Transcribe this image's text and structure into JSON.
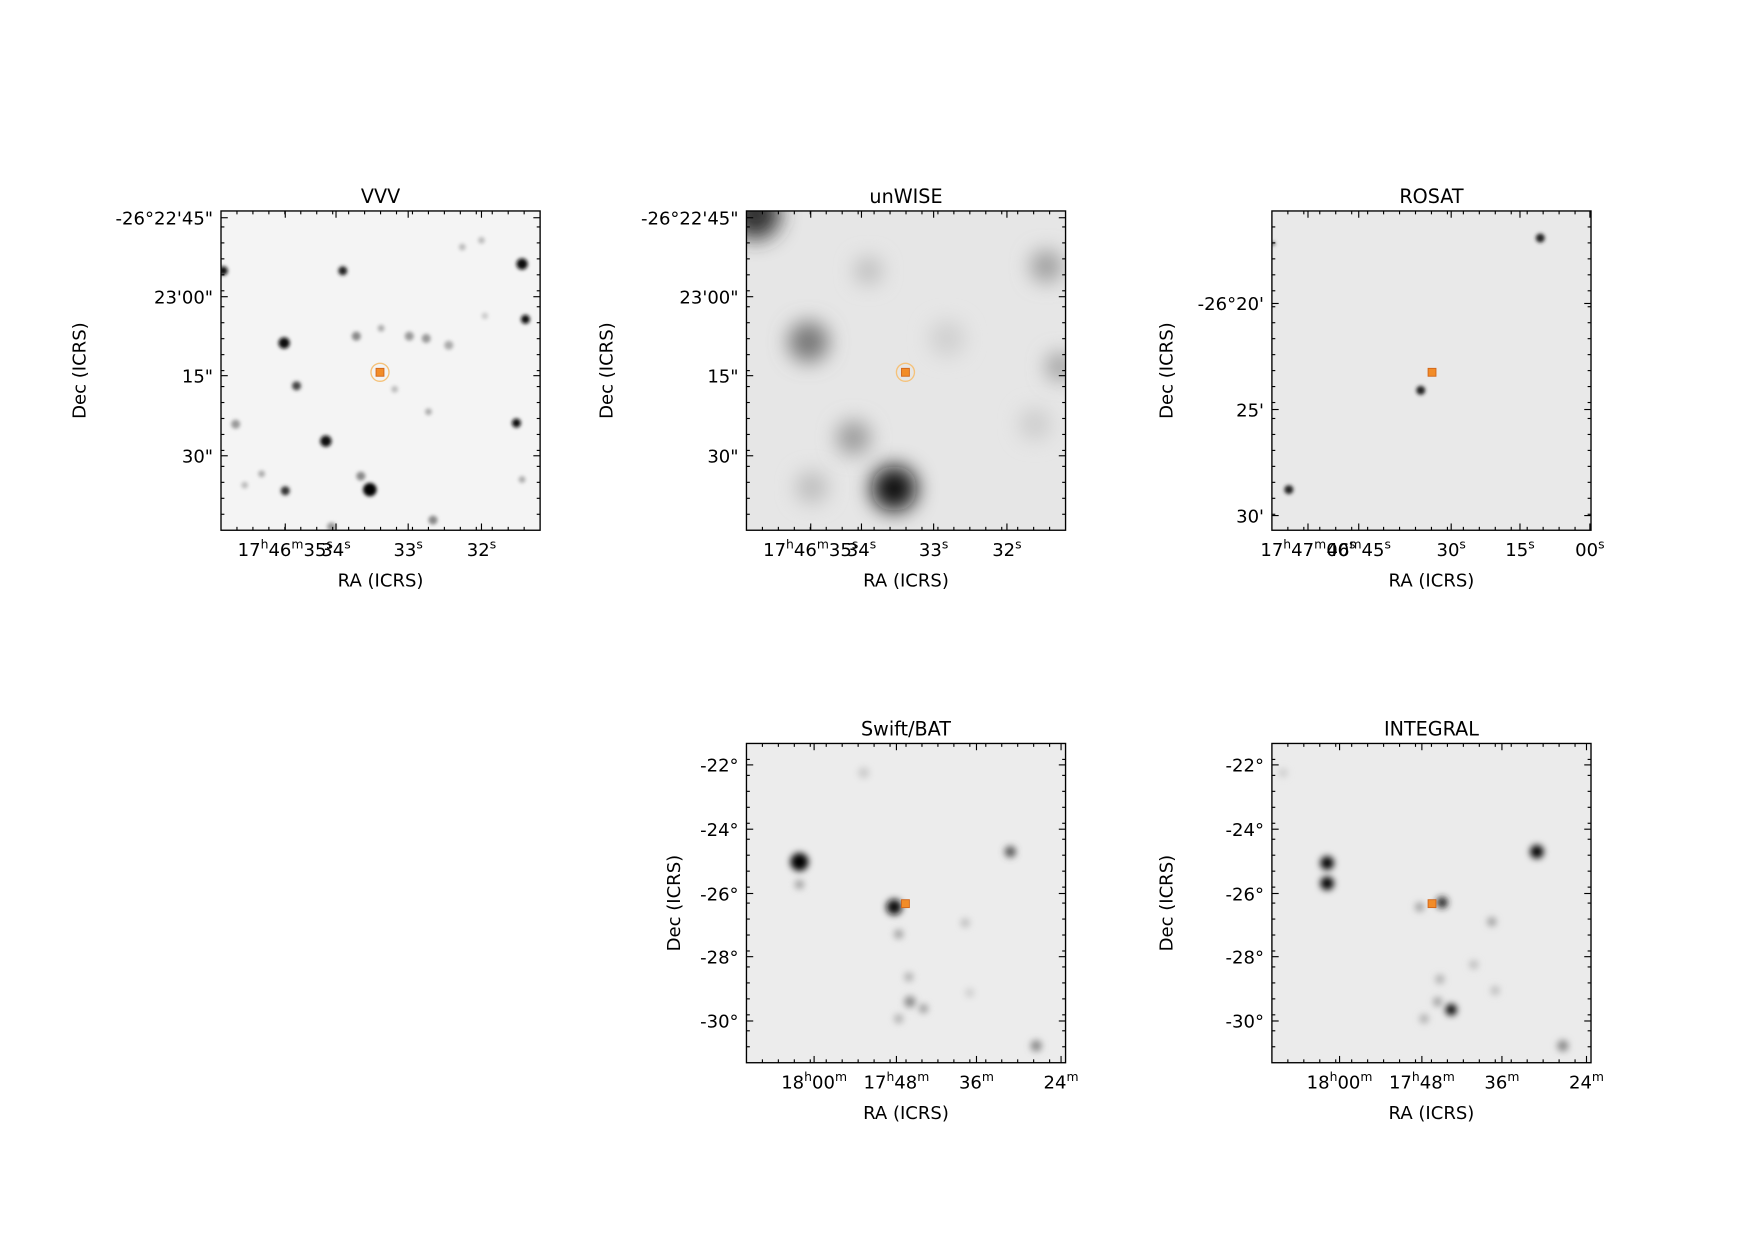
{
  "panels": [
    {
      "title": "VVV",
      "x_label": "RA (ICRS)",
      "y_label": "Dec (ICRS)",
      "x_ticks": [
        [
          "17",
          "h",
          "46",
          "m",
          "35",
          "s"
        ],
        [
          "34",
          "s"
        ],
        [
          "33",
          "s"
        ],
        [
          "32",
          "s"
        ]
      ],
      "y_ticks": [
        "-26°22'45\"",
        "23'00\"",
        "15\"",
        "30\""
      ]
    },
    {
      "title": "unWISE",
      "x_label": "RA (ICRS)",
      "y_label": "Dec (ICRS)",
      "x_ticks": [
        [
          "17",
          "h",
          "46",
          "m",
          "35",
          "s"
        ],
        [
          "34",
          "s"
        ],
        [
          "33",
          "s"
        ],
        [
          "32",
          "s"
        ]
      ],
      "y_ticks": [
        "-26°22'45\"",
        "23'00\"",
        "15\"",
        "30\""
      ]
    },
    {
      "title": "ROSAT",
      "x_label": "RA (ICRS)",
      "y_label": "Dec (ICRS)",
      "x_ticks": [
        [
          "17",
          "h",
          "47",
          "m",
          "00",
          "s"
        ],
        [
          "46",
          "m",
          "45",
          "s"
        ],
        [
          "30",
          "s"
        ],
        [
          "15",
          "s"
        ],
        [
          "00",
          "s"
        ]
      ],
      "y_ticks": [
        "-26°20'",
        "25'",
        "30'"
      ]
    },
    {
      "title": "Swift/BAT",
      "x_label": "RA (ICRS)",
      "y_label": "Dec (ICRS)",
      "x_ticks": [
        [
          "18",
          "h",
          "00",
          "m"
        ],
        [
          "17",
          "h",
          "48",
          "m"
        ],
        [
          "36",
          "m"
        ],
        [
          "24",
          "m"
        ]
      ],
      "y_ticks": [
        "-22°",
        "-24°",
        "-26°",
        "-28°",
        "-30°"
      ]
    },
    {
      "title": "INTEGRAL",
      "x_label": "RA (ICRS)",
      "y_label": "Dec (ICRS)",
      "x_ticks": [
        [
          "18",
          "h",
          "00",
          "m"
        ],
        [
          "17",
          "h",
          "48",
          "m"
        ],
        [
          "36",
          "m"
        ],
        [
          "24",
          "m"
        ]
      ],
      "y_ticks": [
        "-22°",
        "-24°",
        "-26°",
        "-28°",
        "-30°"
      ]
    }
  ]
}
